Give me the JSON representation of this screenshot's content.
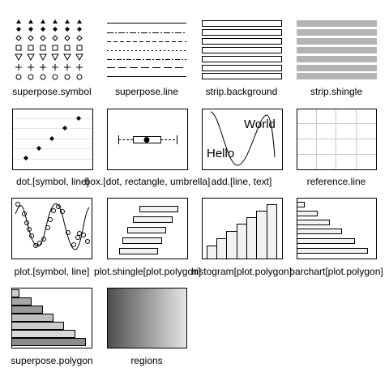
{
  "panels": [
    {
      "id": "superpose-symbol",
      "label": "superpose.symbol"
    },
    {
      "id": "superpose-line",
      "label": "superpose.line"
    },
    {
      "id": "strip-background",
      "label": "strip.background"
    },
    {
      "id": "strip-shingle",
      "label": "strip.shingle"
    },
    {
      "id": "dot",
      "label": "dot.[symbol, line]"
    },
    {
      "id": "box",
      "label": "box.[dot, rectangle, umbrella]"
    },
    {
      "id": "add",
      "label": "add.[line, text]",
      "text_hello": "Hello",
      "text_world": "World"
    },
    {
      "id": "reference-line",
      "label": "reference.line"
    },
    {
      "id": "plot",
      "label": "plot.[symbol, line]"
    },
    {
      "id": "plot-shingle",
      "label": "plot.shingle[plot.polygon]"
    },
    {
      "id": "histogram",
      "label": "histogram[plot.polygon]"
    },
    {
      "id": "barchart",
      "label": "barchart[plot.polygon]"
    },
    {
      "id": "superpose-polygon",
      "label": "superpose.polygon"
    },
    {
      "id": "regions",
      "label": "regions"
    }
  ]
}
